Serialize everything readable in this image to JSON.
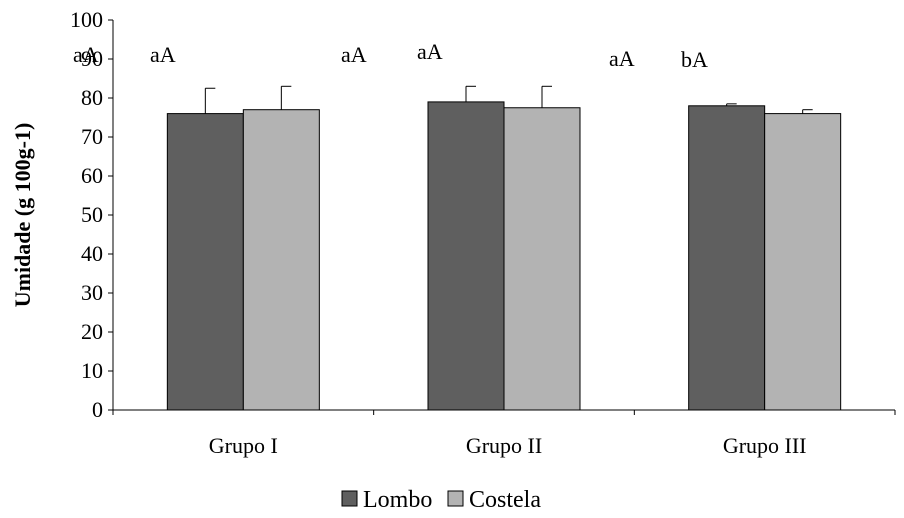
{
  "chart_data": {
    "type": "bar",
    "title": "",
    "xlabel": "",
    "ylabel": "Umidade (g 100g-1)",
    "ylim": [
      0,
      100
    ],
    "yticks": [
      0,
      10,
      20,
      30,
      40,
      50,
      60,
      70,
      80,
      90,
      100
    ],
    "categories": [
      "Grupo I",
      "Grupo II",
      "Grupo III"
    ],
    "series": [
      {
        "name": "Lombo",
        "color": "#5f5f5f",
        "values": [
          76,
          79,
          78
        ],
        "errors": [
          6.5,
          4,
          0.5
        ]
      },
      {
        "name": "Costela",
        "color": "#b3b3b3",
        "values": [
          77,
          77.5,
          76
        ],
        "errors": [
          6,
          5.5,
          1
        ]
      }
    ],
    "annotations": [
      "aA",
      "aA",
      "aA",
      "aA",
      "aA",
      "bA"
    ],
    "grid": false,
    "legend_position": "bottom"
  }
}
